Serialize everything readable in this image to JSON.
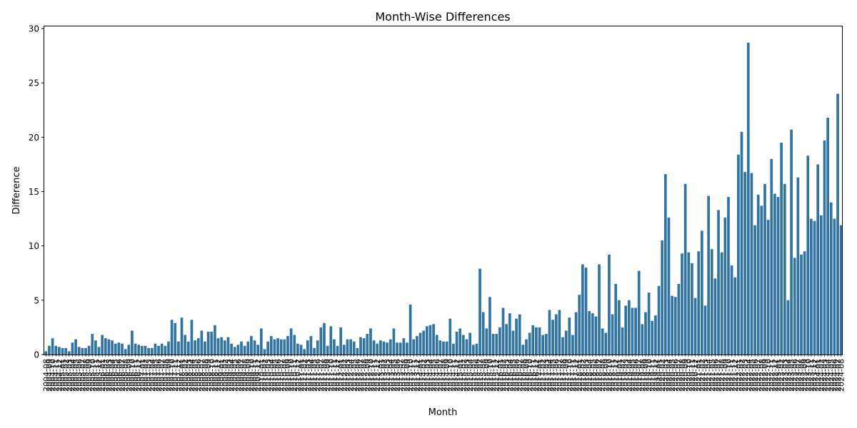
{
  "chart_data": {
    "type": "bar",
    "title": "Month-Wise Differences",
    "xlabel": "Month",
    "ylabel": "Difference",
    "ylim": [
      0,
      30.2
    ],
    "yticks": [
      0,
      5,
      10,
      15,
      20,
      25,
      30
    ],
    "grid": false,
    "bar_color": "#3274a1",
    "start_month": "2004-08",
    "end_month": "2024-08",
    "values": [
      0.3,
      0.8,
      1.5,
      0.8,
      0.7,
      0.6,
      0.6,
      0.3,
      1.1,
      1.4,
      0.7,
      0.6,
      0.6,
      0.8,
      1.9,
      1.3,
      0.7,
      1.8,
      1.5,
      1.4,
      1.3,
      1.0,
      1.1,
      1.0,
      0.5,
      0.9,
      2.2,
      1.0,
      0.9,
      0.8,
      0.8,
      0.6,
      0.6,
      1.0,
      0.8,
      1.0,
      0.8,
      1.2,
      3.2,
      2.9,
      1.2,
      3.4,
      1.8,
      1.2,
      3.2,
      1.3,
      1.5,
      2.2,
      1.2,
      2.1,
      2.1,
      2.7,
      1.5,
      1.6,
      1.3,
      1.6,
      1.0,
      0.7,
      0.9,
      1.2,
      0.8,
      1.2,
      1.7,
      1.3,
      0.9,
      2.4,
      0.5,
      1.2,
      1.7,
      1.4,
      1.5,
      1.4,
      1.4,
      1.7,
      2.4,
      1.8,
      1.0,
      0.9,
      0.5,
      1.3,
      1.7,
      0.6,
      1.3,
      2.5,
      2.9,
      0.8,
      2.6,
      1.4,
      0.8,
      2.5,
      0.9,
      1.4,
      1.4,
      1.2,
      0.6,
      1.6,
      1.5,
      1.9,
      2.4,
      1.3,
      1.0,
      1.3,
      1.2,
      1.1,
      1.4,
      2.4,
      1.1,
      1.1,
      1.5,
      1.1,
      4.6,
      1.4,
      1.7,
      2.0,
      2.2,
      2.6,
      2.7,
      2.8,
      1.8,
      1.3,
      1.2,
      1.2,
      3.3,
      1.0,
      2.1,
      2.4,
      1.8,
      1.4,
      2.0,
      0.9,
      1.0,
      7.9,
      3.9,
      2.4,
      5.3,
      1.9,
      1.9,
      2.5,
      4.3,
      2.8,
      3.8,
      2.2,
      3.3,
      3.7,
      0.9,
      1.4,
      2.0,
      2.7,
      2.5,
      2.5,
      1.8,
      1.9,
      4.1,
      3.2,
      3.7,
      4.1,
      1.6,
      2.2,
      3.4,
      1.8,
      3.9,
      5.5,
      8.3,
      8.0,
      4.0,
      3.8,
      3.5,
      8.3,
      2.4,
      2.0,
      9.2,
      3.7,
      6.5,
      5.0,
      2.5,
      4.5,
      5.0,
      4.3,
      4.3,
      7.7,
      2.8,
      3.9,
      5.7,
      3.1,
      3.6,
      6.3,
      10.5,
      16.6,
      12.6,
      5.4,
      5.3,
      6.5,
      9.3,
      15.7,
      9.4,
      8.4,
      5.2,
      9.5,
      11.4,
      4.5,
      14.6,
      9.7,
      7.0,
      13.3,
      9.4,
      12.6,
      14.5,
      8.2,
      7.1,
      18.4,
      20.5,
      16.8,
      28.7,
      16.7,
      11.9,
      14.7,
      13.7,
      15.7,
      12.4,
      18.0,
      14.8,
      14.5,
      19.5,
      15.7,
      5.0,
      20.7,
      8.9,
      16.3,
      9.2,
      9.5,
      18.3,
      12.5,
      12.3,
      17.5,
      12.8,
      19.7,
      21.8,
      14.0,
      12.5,
      24.0,
      11.9
    ]
  }
}
